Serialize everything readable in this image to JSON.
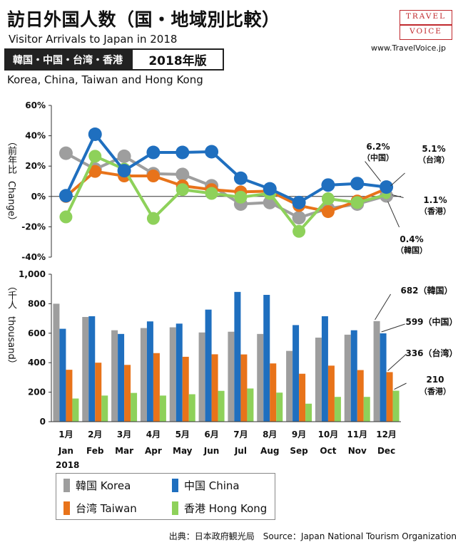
{
  "header": {
    "title_ja": "訪日外国人数（国・地域別比較）",
    "title_en": "Visitor Arrivals to Japan in 2018",
    "tag_regions": "韓国・中国・台湾・香港",
    "tag_year": "2018年版",
    "subtitle": "Korea, China, Taiwan and Hong Kong",
    "logo_line1": "TRAVEL",
    "logo_line2": "VOICE",
    "site": "www.TravelVoice.jp"
  },
  "axes": {
    "top_ylabel_ja": "（前年比",
    "top_ylabel_en": "Change）",
    "bottom_ylabel_ja": "（千人",
    "bottom_ylabel_en": "thousand）",
    "year_label": "2018"
  },
  "colors": {
    "Korea": "#9e9e9e",
    "China": "#1f6fbf",
    "Taiwan": "#e8731a",
    "HongKong": "#8ed15a"
  },
  "chart_data": [
    {
      "type": "line",
      "ylim": [
        -40,
        60
      ],
      "yticks": [
        -40,
        -20,
        0,
        20,
        40,
        60
      ],
      "ytick_labels": [
        "-40%",
        "-20%",
        "0%",
        "20%",
        "40%",
        "60%"
      ],
      "x": [
        "Jan",
        "Feb",
        "Mar",
        "Apr",
        "May",
        "Jun",
        "Jul",
        "Aug",
        "Sep",
        "Oct",
        "Nov",
        "Dec"
      ],
      "series": [
        {
          "key": "Korea",
          "name": "韓国 Korea",
          "values": [
            28.5,
            18,
            26.5,
            15,
            14.5,
            7,
            -5,
            -4,
            -14,
            -8,
            -5,
            0.4
          ]
        },
        {
          "key": "China",
          "name": "中国 China",
          "values": [
            0.5,
            41,
            17,
            29,
            29,
            29.5,
            12,
            5,
            -4,
            7.5,
            8.5,
            6.2
          ]
        },
        {
          "key": "Taiwan",
          "name": "台湾 Taiwan",
          "values": [
            0,
            16.5,
            13.5,
            13.5,
            7,
            4.5,
            3,
            3.5,
            -6,
            -10,
            -3,
            5.1
          ]
        },
        {
          "key": "HongKong",
          "name": "香港 Hong Kong",
          "values": [
            -13.5,
            26.5,
            18,
            -14.5,
            4.5,
            2,
            -0.5,
            2,
            -23,
            -1.5,
            -4,
            1.1
          ]
        }
      ],
      "annotations": [
        {
          "series": "China",
          "value": "6.2%",
          "label": "（中国）"
        },
        {
          "series": "Taiwan",
          "value": "5.1%",
          "label": "（台湾）"
        },
        {
          "series": "HongKong",
          "value": "1.1%",
          "label": "（香港）"
        },
        {
          "series": "Korea",
          "value": "0.4%",
          "label": "（韓国）"
        }
      ]
    },
    {
      "type": "bar",
      "ylim": [
        0,
        1000
      ],
      "yticks": [
        0,
        200,
        400,
        600,
        800,
        1000
      ],
      "ytick_labels": [
        "0",
        "200",
        "400",
        "600",
        "800",
        "1,000"
      ],
      "categories_ja": [
        "1月",
        "2月",
        "3月",
        "4月",
        "5月",
        "6月",
        "7月",
        "8月",
        "9月",
        "10月",
        "11月",
        "12月"
      ],
      "categories_en": [
        "Jan",
        "Feb",
        "Mar",
        "Apr",
        "May",
        "Jun",
        "Jul",
        "Aug",
        "Sep",
        "Oct",
        "Nov",
        "Dec"
      ],
      "series": [
        {
          "key": "Korea",
          "name": "韓国 Korea",
          "values": [
            800,
            710,
            620,
            635,
            640,
            605,
            610,
            595,
            480,
            570,
            590,
            682
          ]
        },
        {
          "key": "China",
          "name": "中国 China",
          "values": [
            630,
            715,
            595,
            680,
            665,
            760,
            880,
            860,
            655,
            715,
            620,
            599
          ]
        },
        {
          "key": "Taiwan",
          "name": "台湾 Taiwan",
          "values": [
            352,
            400,
            385,
            465,
            440,
            457,
            456,
            395,
            325,
            380,
            350,
            336
          ]
        },
        {
          "key": "HongKong",
          "name": "香港 Hong Kong",
          "values": [
            157,
            177,
            195,
            177,
            186,
            209,
            225,
            197,
            122,
            168,
            168,
            210
          ]
        }
      ],
      "annotations": [
        {
          "series": "Korea",
          "text": "682（韓国）"
        },
        {
          "series": "China",
          "text": "599（中国）"
        },
        {
          "series": "Taiwan",
          "text": "336（台湾）"
        },
        {
          "series": "HongKong",
          "text": "210\n（香港）"
        }
      ]
    }
  ],
  "source": "出典：日本政府観光局　Source：Japan  National Tourism  Organization"
}
